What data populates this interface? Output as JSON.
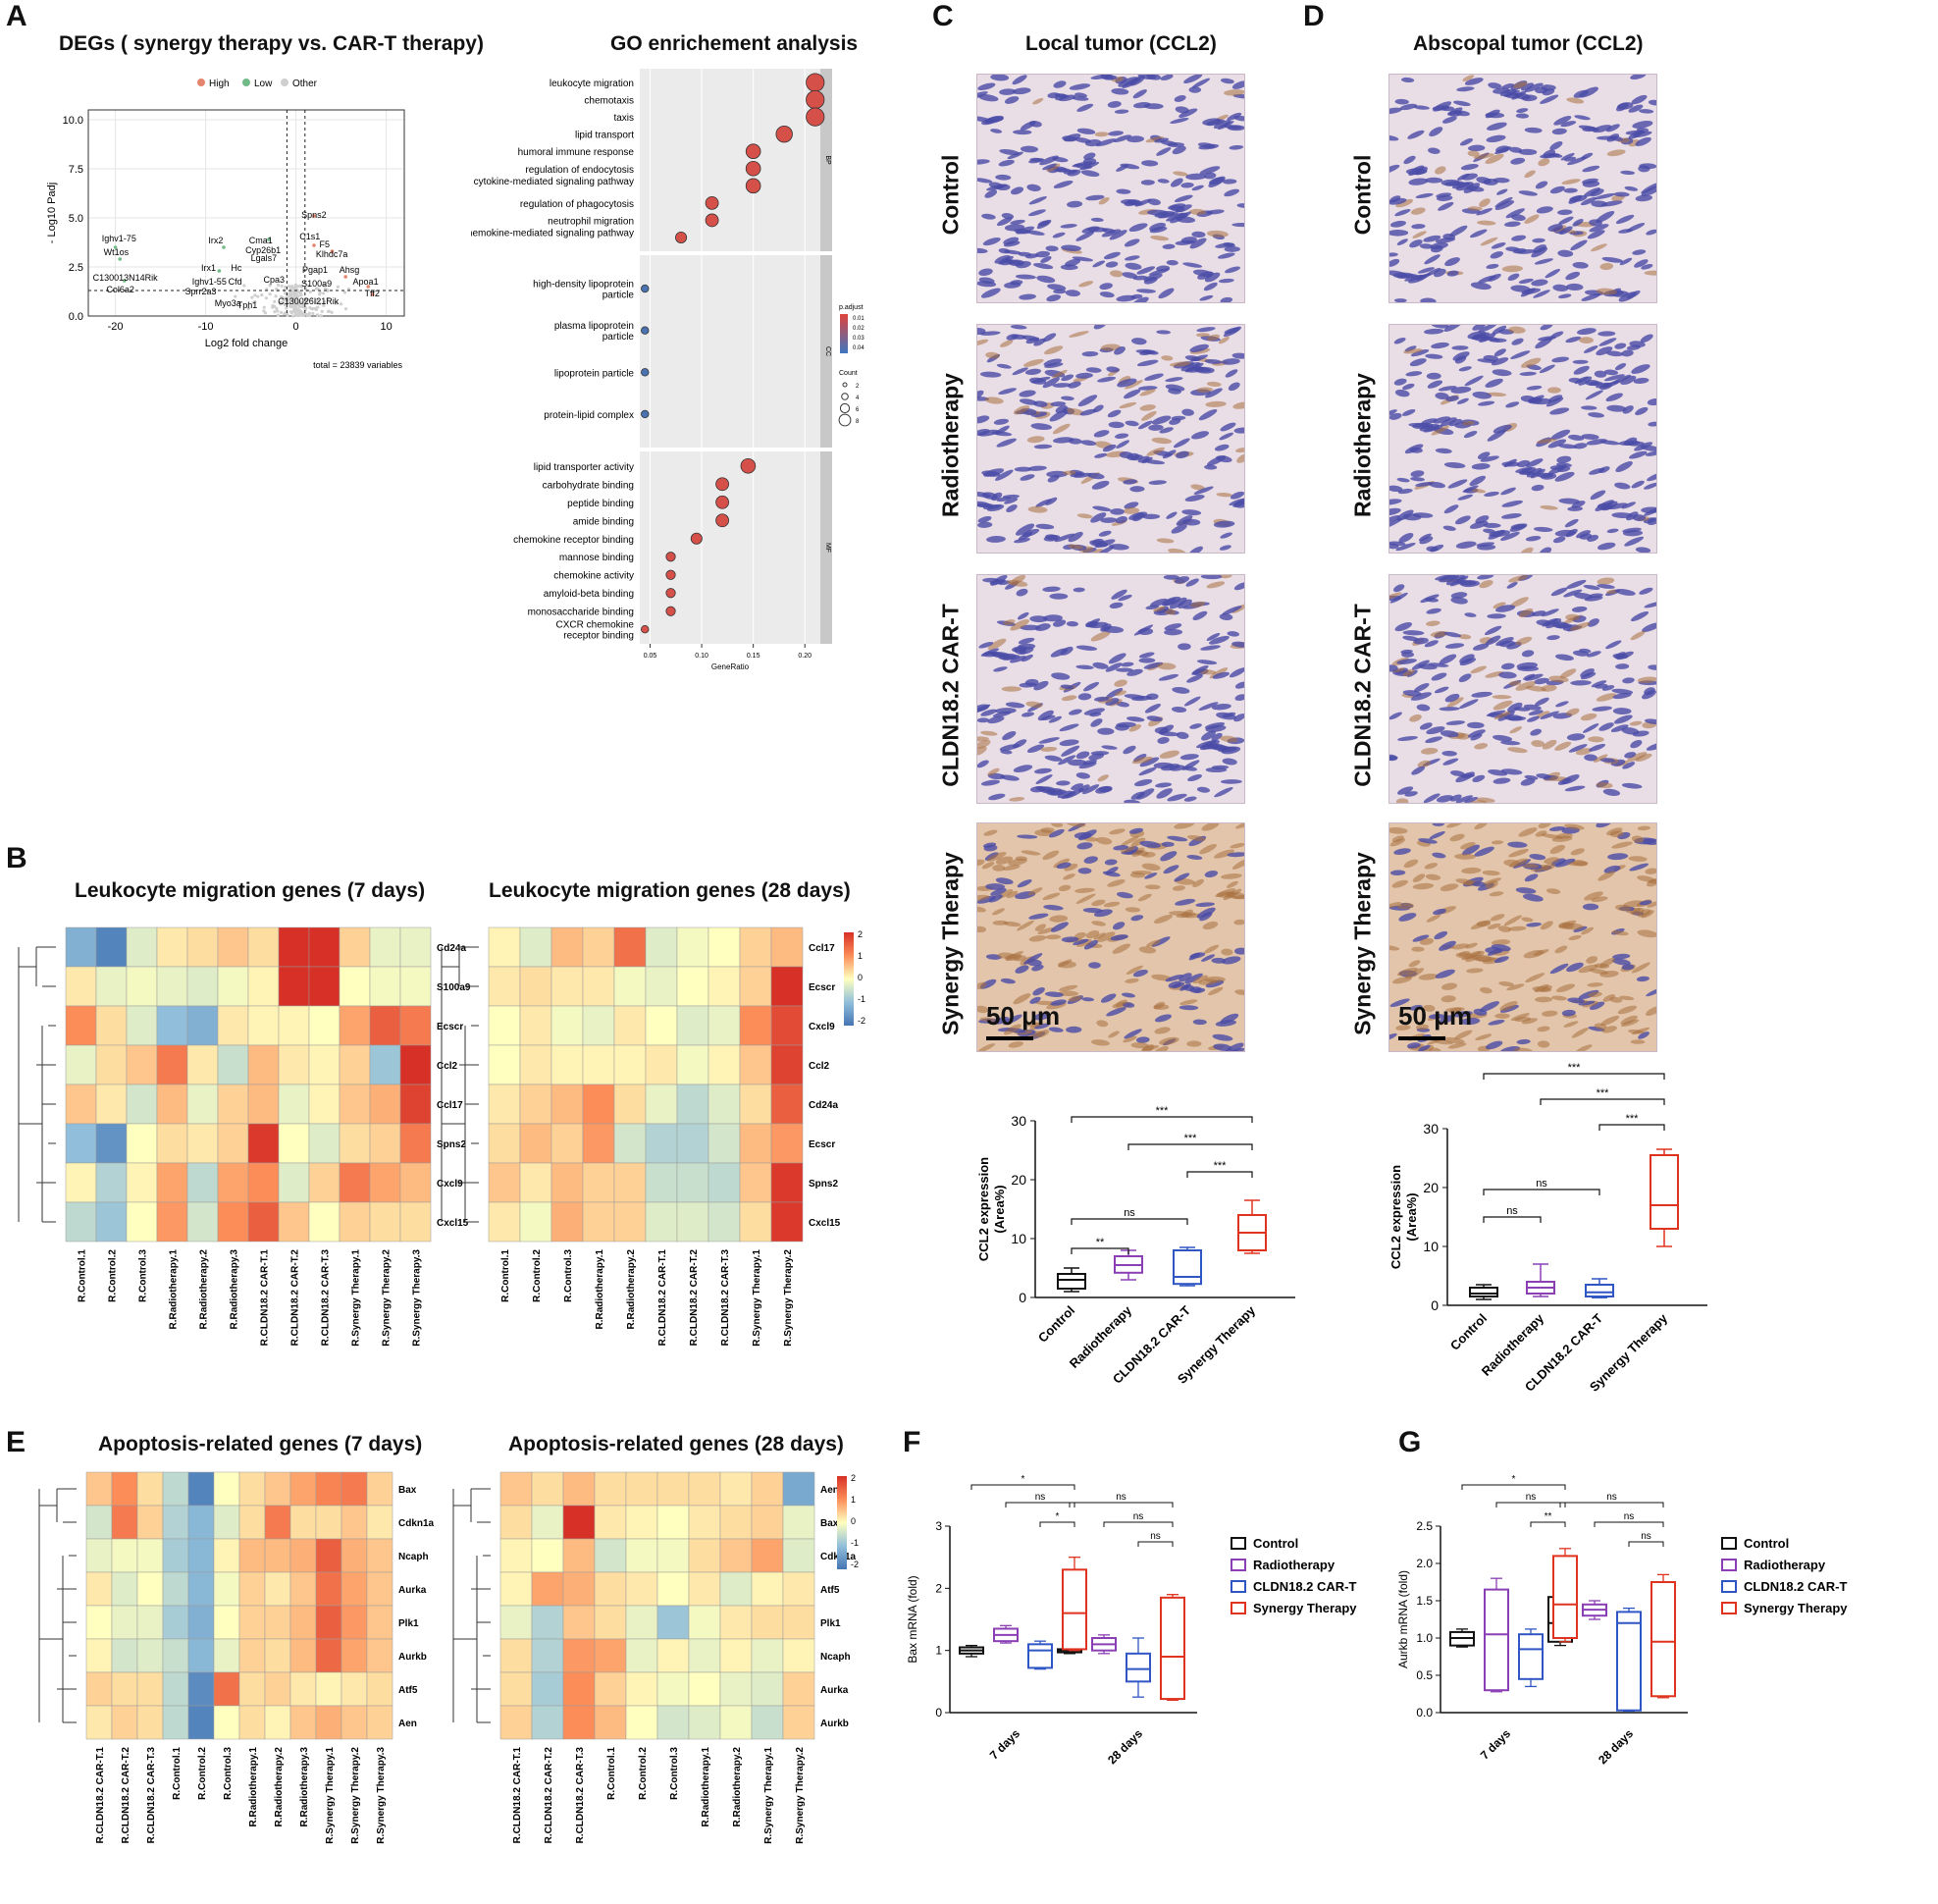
{
  "panels": {
    "A": "A",
    "B": "B",
    "C": "C",
    "D": "D",
    "E": "E",
    "F": "F",
    "G": "G"
  },
  "volcano": {
    "title": "DEGs ( synergy therapy vs. CAR-T therapy)",
    "legend": [
      "High",
      "Low",
      "Other"
    ],
    "colors": {
      "high": "#e5846c",
      "low": "#6fba86",
      "other": "#cfcfcf"
    },
    "ylabel": "- Log10 Padj",
    "xlabel": "Log2 fold change",
    "xticks": [
      "-20",
      "-10",
      "0",
      "10"
    ],
    "yticks": [
      "10.0",
      "7.5",
      "5.0",
      "2.5",
      "0.0"
    ],
    "total": "total = 23839 variables",
    "gene_labels": [
      "Ighv1-75",
      "Wt1os",
      "C130013N14Rik",
      "Col6a2",
      "Irx2",
      "Cma1",
      "Cyp26b1",
      "Lgals7",
      "Irx1",
      "Ighv1-55",
      "Hc",
      "Cfd",
      "Cpa3",
      "Sprr2a3",
      "Myo3a",
      "Tph1",
      "C130026I21Rik",
      "Spns2",
      "C1s1",
      "F5",
      "Klhdc7a",
      "Pgap1",
      "Ahsg",
      "S100a9",
      "Apoa1",
      "Tff2"
    ]
  },
  "go": {
    "title": "GO enrichement analysis",
    "bp_terms": [
      "leukocyte migration",
      "chemotaxis",
      "taxis",
      "lipid transport",
      "humoral immune response",
      "regulation of endocytosis",
      "cytokine-mediated signaling pathway",
      "regulation of phagocytosis",
      "neutrophil migration",
      "chemokine-mediated signaling pathway"
    ],
    "bp_ratio": [
      0.21,
      0.21,
      0.21,
      0.18,
      0.15,
      0.15,
      0.15,
      0.11,
      0.11,
      0.08
    ],
    "cc_terms": [
      "high-density lipoprotein particle",
      "plasma lipoprotein particle",
      "lipoprotein particle",
      "protein-lipid complex"
    ],
    "cc_ratio": [
      0.045,
      0.045,
      0.045,
      0.045
    ],
    "mf_terms": [
      "lipid transporter activity",
      "carbohydrate binding",
      "peptide binding",
      "amide binding",
      "chemokine receptor binding",
      "mannose binding",
      "chemokine activity",
      "amyloid-beta binding",
      "monosaccharide binding",
      "CXCR chemokine receptor binding"
    ],
    "mf_ratio": [
      0.145,
      0.12,
      0.12,
      0.12,
      0.095,
      0.07,
      0.07,
      0.07,
      0.07,
      0.045
    ],
    "strips": [
      "BP",
      "CC",
      "MF"
    ],
    "xticks": [
      "0.05",
      "0.10",
      "0.15",
      "0.20"
    ],
    "xlabel": "GeneRatio",
    "legend_padj_title": "p.adjust",
    "legend_padj": [
      "0.01",
      "0.02",
      "0.03",
      "0.04"
    ],
    "legend_count_title": "Count",
    "legend_count": [
      "2",
      "4",
      "6",
      "8"
    ]
  },
  "ihc": {
    "title_c": "Local tumor (CCL2)",
    "title_d": "Abscopal tumor (CCL2)",
    "rows": [
      "Control",
      "Radiotherapy",
      "CLDN18.2 CAR-T",
      "Synergy Therapy"
    ],
    "scale": "50 μm"
  },
  "box_c": {
    "ylabel": "CCL2 expression (Area%)",
    "yticks": [
      "0",
      "10",
      "20",
      "30"
    ],
    "groups": [
      "Control",
      "Radiotherapy",
      "CLDN18.2 CAR-T",
      "Synergy Therapy"
    ],
    "sig": [
      "***",
      "***",
      "***",
      "ns",
      "**"
    ]
  },
  "box_d": {
    "ylabel": "CCL2 expression (Area%)",
    "yticks": [
      "0",
      "10",
      "20",
      "30"
    ],
    "groups": [
      "Control",
      "Radiotherapy",
      "CLDN18.2 CAR-T",
      "Synergy Therapy"
    ],
    "sig": [
      "***",
      "***",
      "***",
      "ns",
      "ns"
    ]
  },
  "heat_b": {
    "title_left": "Leukocyte migration genes (7 days)",
    "title_right": "Leukocyte migration genes (28 days)",
    "rows_left": [
      "Cd24a",
      "S100a9",
      "Ecscr",
      "Ccl2",
      "Ccl17",
      "Spns2",
      "Cxcl9",
      "Cxcl15"
    ],
    "cols_left": [
      "R.Control.1",
      "R.Control.2",
      "R.Control.3",
      "R.Radiotherapy.1",
      "R.Radiotherapy.2",
      "R.Radiotherapy.3",
      "R.CLDN18.2 CAR-T.1",
      "R.CLDN18.2 CAR-T.2",
      "R.CLDN18.2 CAR-T.3",
      "R.Synergy Therapy.1",
      "R.Synergy Therapy.2",
      "R.Synergy Therapy.3"
    ],
    "rows_right": [
      "Ccl17",
      "Ecscr",
      "Cxcl9",
      "Ccl2",
      "Cd24a",
      "Ecscr",
      "Spns2",
      "Cxcl15"
    ],
    "cols_right": [
      "R.Control.1",
      "R.Control.2",
      "R.Control.3",
      "R.Radiotherapy.1",
      "R.Radiotherapy.2",
      "R.CLDN18.2 CAR-T.1",
      "R.CLDN18.2 CAR-T.2",
      "R.CLDN18.2 CAR-T.3",
      "R.Synergy Therapy.1",
      "R.Synergy Therapy.2"
    ],
    "scale": [
      "2",
      "1",
      "0",
      "-1",
      "-2"
    ]
  },
  "heat_e": {
    "title_left": "Apoptosis-related genes (7 days)",
    "title_right": "Apoptosis-related genes (28 days)",
    "rows_left": [
      "Bax",
      "Cdkn1a",
      "Ncaph",
      "Aurka",
      "Plk1",
      "Aurkb",
      "Atf5",
      "Aen"
    ],
    "cols_left": [
      "R.CLDN18.2 CAR-T.1",
      "R.CLDN18.2 CAR-T.2",
      "R.CLDN18.2 CAR-T.3",
      "R.Control.1",
      "R.Control.2",
      "R.Control.3",
      "R.Radiotherapy.1",
      "R.Radiotherapy.2",
      "R.Radiotherapy.3",
      "R.Synergy Therapy.1",
      "R.Synergy Therapy.2",
      "R.Synergy Therapy.3"
    ],
    "rows_right": [
      "Aen",
      "Bax",
      "Cdkn1a",
      "Atf5",
      "Plk1",
      "Ncaph",
      "Aurka",
      "Aurkb"
    ],
    "cols_right": [
      "R.CLDN18.2 CAR-T.1",
      "R.CLDN18.2 CAR-T.2",
      "R.CLDN18.2 CAR-T.3",
      "R.Control.1",
      "R.Control.2",
      "R.Control.3",
      "R.Radiotherapy.1",
      "R.Radiotherapy.2",
      "R.Synergy Therapy.1",
      "R.Synergy Therapy.2"
    ],
    "scale": [
      "2",
      "1",
      "0",
      "-1",
      "-2"
    ]
  },
  "chart_data": [
    {
      "type": "scatter",
      "title": "DEGs ( synergy therapy vs. CAR-T therapy)",
      "xlabel": "Log2 fold change",
      "ylabel": "-Log10 Padj",
      "xlim": [
        -23,
        12
      ],
      "ylim": [
        0,
        10.5
      ],
      "points": [
        {
          "label": "Ighv1-75",
          "x": -20,
          "y": 3.5
        },
        {
          "label": "Wt1os",
          "x": -19.5,
          "y": 2.9
        },
        {
          "label": "Col6a2",
          "x": -19,
          "y": 1.8
        },
        {
          "label": "Irx2",
          "x": -8,
          "y": 3.5
        },
        {
          "label": "Irx1",
          "x": -8.5,
          "y": 2.3
        },
        {
          "label": "Cma1",
          "x": -3,
          "y": 3.9
        },
        {
          "label": "Spns2",
          "x": 2,
          "y": 5.1
        },
        {
          "label": "C1s1",
          "x": 2,
          "y": 3.6
        },
        {
          "label": "F5",
          "x": 4,
          "y": 3.3
        },
        {
          "label": "Ahsg",
          "x": 5.5,
          "y": 2.0
        },
        {
          "label": "Apoa1",
          "x": 8,
          "y": 1.5
        },
        {
          "label": "Tff2",
          "x": 8.5,
          "y": 1.1
        }
      ]
    },
    {
      "type": "box",
      "title": "Local tumor (CCL2)",
      "ylabel": "CCL2 expression (Area%)",
      "ylim": [
        0,
        30
      ],
      "categories": [
        "Control",
        "Radiotherapy",
        "CLDN18.2 CAR-T",
        "Synergy Therapy"
      ],
      "boxes": [
        {
          "min": 1,
          "q1": 1.5,
          "median": 3,
          "q3": 4,
          "max": 5
        },
        {
          "min": 3,
          "q1": 4.2,
          "median": 5.5,
          "q3": 7,
          "max": 8
        },
        {
          "min": 2,
          "q1": 2.3,
          "median": 3.5,
          "q3": 8,
          "max": 8.5
        },
        {
          "min": 7.5,
          "q1": 8,
          "median": 11,
          "q3": 14,
          "max": 16.5
        }
      ]
    },
    {
      "type": "box",
      "title": "Abscopal tumor (CCL2)",
      "ylabel": "CCL2 expression (Area%)",
      "ylim": [
        0,
        30
      ],
      "categories": [
        "Control",
        "Radiotherapy",
        "CLDN18.2 CAR-T",
        "Synergy Therapy"
      ],
      "boxes": [
        {
          "min": 1,
          "q1": 1.5,
          "median": 2,
          "q3": 3,
          "max": 3.5
        },
        {
          "min": 1.5,
          "q1": 2,
          "median": 3,
          "q3": 4,
          "max": 7
        },
        {
          "min": 1.3,
          "q1": 1.5,
          "median": 2.2,
          "q3": 3.5,
          "max": 4.5
        },
        {
          "min": 10,
          "q1": 13,
          "median": 17,
          "q3": 25.5,
          "max": 26.5
        }
      ]
    },
    {
      "type": "box",
      "title": "Bax mRNA",
      "ylabel": "Bax mRNA (fold)",
      "ylim": [
        0,
        3
      ],
      "categories": [
        "7 days",
        "28 days"
      ],
      "series": [
        {
          "name": "Control",
          "boxes": [
            {
              "min": 0.9,
              "q1": 0.95,
              "median": 1.0,
              "q3": 1.05,
              "max": 1.08
            },
            {
              "min": 0.95,
              "q1": 0.97,
              "median": 1.0,
              "q3": 1.02,
              "max": 1.04
            }
          ]
        },
        {
          "name": "Radiotherapy",
          "boxes": [
            {
              "min": 1.12,
              "q1": 1.15,
              "median": 1.25,
              "q3": 1.35,
              "max": 1.4
            },
            {
              "min": 0.95,
              "q1": 1.0,
              "median": 1.1,
              "q3": 1.2,
              "max": 1.25
            }
          ]
        },
        {
          "name": "CLDN18.2 CAR-T",
          "boxes": [
            {
              "min": 0.7,
              "q1": 0.72,
              "median": 1.0,
              "q3": 1.1,
              "max": 1.15
            },
            {
              "min": 0.25,
              "q1": 0.5,
              "median": 0.7,
              "q3": 0.95,
              "max": 1.2
            }
          ]
        },
        {
          "name": "Synergy Therapy",
          "boxes": [
            {
              "min": 1.0,
              "q1": 1.02,
              "median": 1.6,
              "q3": 2.3,
              "max": 2.5
            },
            {
              "min": 0.2,
              "q1": 0.22,
              "median": 0.9,
              "q3": 1.85,
              "max": 1.9
            }
          ]
        }
      ]
    },
    {
      "type": "box",
      "title": "Aurkb mRNA",
      "ylabel": "Aurkb mRNA (fold)",
      "ylim": [
        0,
        2.5
      ],
      "categories": [
        "7 days",
        "28 days"
      ],
      "series": [
        {
          "name": "Control",
          "boxes": [
            {
              "min": 0.88,
              "q1": 0.9,
              "median": 1.0,
              "q3": 1.08,
              "max": 1.12
            },
            {
              "min": 0.9,
              "q1": 0.95,
              "median": 1.2,
              "q3": 1.55,
              "max": 1.65
            }
          ]
        },
        {
          "name": "Radiotherapy",
          "boxes": [
            {
              "min": 0.28,
              "q1": 0.3,
              "median": 1.05,
              "q3": 1.65,
              "max": 1.8
            },
            {
              "min": 1.25,
              "q1": 1.3,
              "median": 1.38,
              "q3": 1.45,
              "max": 1.5
            }
          ]
        },
        {
          "name": "CLDN18.2 CAR-T",
          "boxes": [
            {
              "min": 0.35,
              "q1": 0.45,
              "median": 0.85,
              "q3": 1.05,
              "max": 1.12
            },
            {
              "min": 0.02,
              "q1": 0.03,
              "median": 1.2,
              "q3": 1.35,
              "max": 1.4
            }
          ]
        },
        {
          "name": "Synergy Therapy",
          "boxes": [
            {
              "min": 0.95,
              "q1": 1.0,
              "median": 1.45,
              "q3": 2.1,
              "max": 2.2
            },
            {
              "min": 0.2,
              "q1": 0.22,
              "median": 0.95,
              "q3": 1.75,
              "max": 1.85
            }
          ]
        }
      ]
    }
  ],
  "legend_fg": {
    "items": [
      "Control",
      "Radiotherapy",
      "CLDN18.2 CAR-T",
      "Synergy Therapy"
    ],
    "colors": [
      "#111111",
      "#8b3fb5",
      "#2f56c4",
      "#e0331f"
    ],
    "x_labels": [
      "7 days",
      "28 days"
    ],
    "f_ylabel": "Bax mRNA (fold)",
    "g_ylabel": "Aurkb mRNA (fold)",
    "f_yticks": [
      "0",
      "1",
      "2",
      "3"
    ],
    "g_yticks": [
      "0.0",
      "0.5",
      "1.0",
      "1.5",
      "2.0",
      "2.5"
    ],
    "f_sig": [
      "*",
      "ns",
      "*",
      "ns",
      "ns",
      "ns"
    ],
    "g_sig": [
      "*",
      "ns",
      "**",
      "ns",
      "ns",
      "ns"
    ]
  }
}
